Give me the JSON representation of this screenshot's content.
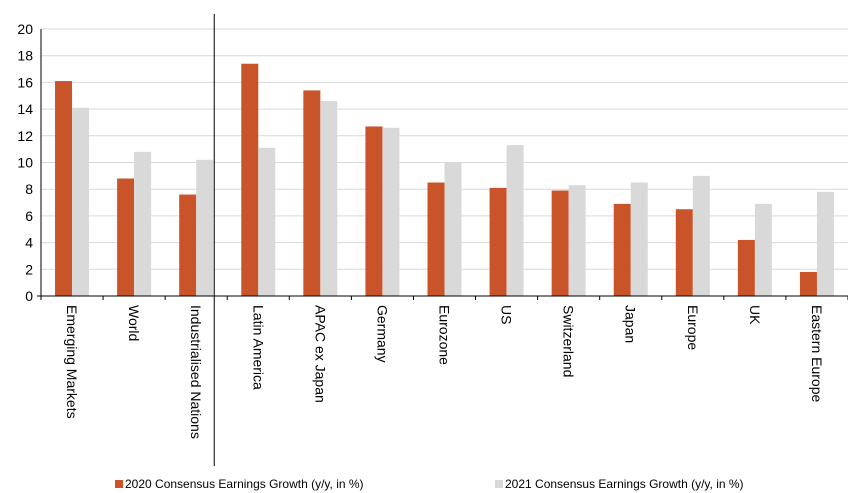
{
  "chart_data": {
    "type": "bar",
    "categories": [
      "Emerging Markets",
      "World",
      "Industrialised Nations",
      "Latin America",
      "APAC ex Japan",
      "Germany",
      "Eurozone",
      "US",
      "Switzerland",
      "Japan",
      "Europe",
      "UK",
      "Eastern Europe"
    ],
    "series": [
      {
        "name": "2020 Consensus Earnings Growth (y/y, in %)",
        "color": "#c9542a",
        "values": [
          16.1,
          8.8,
          7.6,
          17.4,
          15.4,
          12.7,
          8.5,
          8.1,
          7.9,
          6.9,
          6.5,
          4.2,
          1.8
        ]
      },
      {
        "name": "2021 Consensus Earnings Growth (y/y, in %)",
        "color": "#d9d9d9",
        "values": [
          14.1,
          10.8,
          10.2,
          11.1,
          14.6,
          12.6,
          10.0,
          11.3,
          8.3,
          8.5,
          9.0,
          6.9,
          7.8
        ]
      }
    ],
    "ylim": [
      0,
      20
    ],
    "yticks": [
      0,
      2,
      4,
      6,
      8,
      10,
      12,
      14,
      16,
      18,
      20
    ],
    "grid": true,
    "separator_after": "Industrialised Nations",
    "legend_position": "bottom",
    "title": "",
    "xlabel": "",
    "ylabel": ""
  }
}
